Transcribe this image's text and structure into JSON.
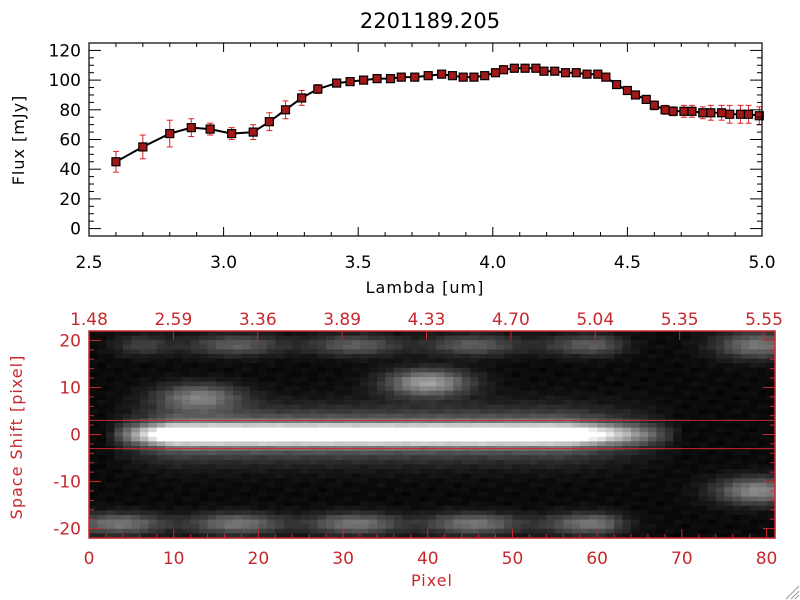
{
  "chart_data": [
    {
      "type": "line",
      "title": "2201189.205",
      "xlabel": "Lambda [um]",
      "ylabel": "Flux [mJy]",
      "xlim": [
        2.5,
        5.0
      ],
      "ylim": [
        -5,
        125
      ],
      "xticks": [
        "2.5",
        "3.0",
        "3.5",
        "4.0",
        "4.5",
        "5.0"
      ],
      "yticks": [
        "0",
        "20",
        "40",
        "60",
        "80",
        "100",
        "120"
      ],
      "colors": {
        "line": "#000000",
        "marker": "#a01818",
        "errorbar": "#dd2222"
      },
      "x": [
        2.6,
        2.7,
        2.8,
        2.88,
        2.95,
        3.03,
        3.11,
        3.17,
        3.23,
        3.29,
        3.35,
        3.42,
        3.47,
        3.52,
        3.57,
        3.62,
        3.66,
        3.71,
        3.76,
        3.81,
        3.85,
        3.89,
        3.93,
        3.97,
        4.01,
        4.04,
        4.08,
        4.12,
        4.16,
        4.19,
        4.23,
        4.27,
        4.31,
        4.35,
        4.39,
        4.42,
        4.46,
        4.5,
        4.53,
        4.57,
        4.6,
        4.64,
        4.67,
        4.71,
        4.74,
        4.78,
        4.81,
        4.85,
        4.88,
        4.92,
        4.95,
        4.99
      ],
      "values": [
        45,
        55,
        64,
        68,
        67,
        64,
        65,
        72,
        80,
        88,
        94,
        98,
        99,
        100,
        101,
        101,
        102,
        102,
        103,
        104,
        103,
        102,
        102,
        103,
        105,
        107,
        108,
        108,
        108,
        106,
        106,
        105,
        105,
        104,
        104,
        102,
        97,
        93,
        90,
        87,
        83,
        80,
        79,
        79,
        79,
        78,
        78,
        78,
        77,
        77,
        77,
        76
      ],
      "errors": [
        7,
        8,
        9,
        6,
        4,
        4,
        5,
        6,
        6,
        5,
        3,
        2,
        2,
        2,
        2,
        2,
        2,
        2,
        2,
        2,
        2,
        2,
        2,
        2,
        2,
        2,
        2,
        2,
        2,
        2,
        2,
        2,
        2,
        2,
        2,
        2,
        2,
        2,
        2,
        2,
        3,
        3,
        3,
        4,
        4,
        4,
        5,
        5,
        6,
        6,
        6,
        6
      ]
    },
    {
      "type": "heatmap",
      "xlabel": "Pixel",
      "ylabel": "Space Shift [pixel]",
      "xlim": [
        0,
        81
      ],
      "ylim": [
        -22,
        22
      ],
      "xticks": [
        "0",
        "10",
        "20",
        "30",
        "40",
        "50",
        "60",
        "70",
        "80"
      ],
      "yticks": [
        "-20",
        "-10",
        "0",
        "10",
        "20"
      ],
      "top_axis_ticks": [
        "1.48",
        "2.59",
        "3.36",
        "3.89",
        "4.33",
        "4.70",
        "5.04",
        "5.35",
        "5.55"
      ],
      "aperture_lines": [
        3,
        -3
      ],
      "colors": {
        "frame": "#c8282d",
        "aperture": "#c8282d",
        "colormap": "grayscale"
      },
      "nx": 81,
      "ny": 45,
      "features": [
        {
          "kind": "trace",
          "x": [
            6,
            68
          ],
          "y": 0,
          "peak": 255
        },
        {
          "kind": "blob",
          "x": 40,
          "y": 11,
          "value": 150
        },
        {
          "kind": "blob",
          "x": 13,
          "y": 8,
          "value": 110
        },
        {
          "kind": "band",
          "x": [
            8,
            60
          ],
          "y": 19,
          "value": 85
        },
        {
          "kind": "band",
          "x": [
            0,
            60
          ],
          "y": -19,
          "value": 110
        },
        {
          "kind": "blob",
          "x": 79,
          "y": -12,
          "value": 130
        },
        {
          "kind": "blob",
          "x": 79,
          "y": 19,
          "value": 110
        }
      ]
    }
  ]
}
